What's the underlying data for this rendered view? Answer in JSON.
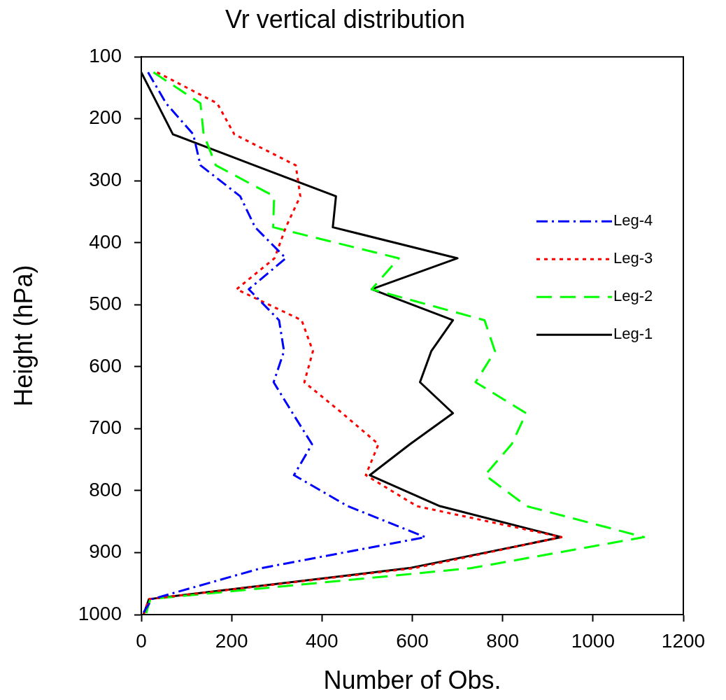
{
  "chart_data": {
    "type": "line",
    "title": "Vr vertical distribution",
    "xlabel": "Number of Obs.",
    "ylabel": "Height (hPa)",
    "orientation": "horizontal",
    "x": [
      125,
      175,
      225,
      275,
      325,
      375,
      425,
      475,
      525,
      575,
      625,
      675,
      725,
      775,
      825,
      875,
      925,
      975,
      1000
    ],
    "series": [
      {
        "name": "Leg-4",
        "color": "#0000ff",
        "line_style": "dashdot",
        "values": [
          15,
          55,
          115,
          131,
          219,
          252,
          320,
          238,
          305,
          316,
          293,
          335,
          378,
          338,
          457,
          629,
          266,
          24,
          2
        ]
      },
      {
        "name": "Leg-3",
        "color": "#ff0000",
        "line_style": "dotted",
        "values": [
          35,
          168,
          206,
          342,
          352,
          320,
          295,
          211,
          355,
          380,
          361,
          445,
          525,
          497,
          610,
          930,
          605,
          17,
          5
        ]
      },
      {
        "name": "Leg-2",
        "color": "#00ff00",
        "line_style": "dashed",
        "values": [
          27,
          131,
          138,
          165,
          294,
          292,
          570,
          510,
          760,
          783,
          740,
          852,
          820,
          761,
          853,
          1113,
          731,
          20,
          10
        ]
      },
      {
        "name": "Leg-1",
        "color": "#000000",
        "line_style": "solid",
        "values": [
          0,
          35,
          70,
          250,
          431,
          424,
          700,
          510,
          690,
          642,
          617,
          690,
          595,
          506,
          661,
          930,
          593,
          17,
          5
        ]
      }
    ],
    "xlim": [
      0,
      1200
    ],
    "xticks": [
      0,
      200,
      400,
      600,
      800,
      1000,
      1200
    ],
    "ylim": [
      1000,
      100
    ],
    "yticks": [
      100,
      200,
      300,
      400,
      500,
      600,
      700,
      800,
      900,
      1000
    ],
    "grid": false,
    "legend": "right",
    "marker": "none"
  }
}
